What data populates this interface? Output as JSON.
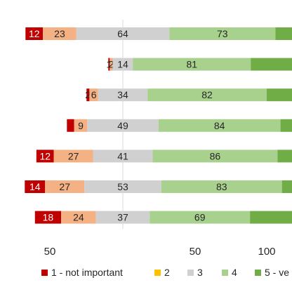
{
  "chart_data": {
    "type": "bar",
    "orientation": "horizontal",
    "stacked": true,
    "categories": [
      "",
      "",
      "",
      "",
      "",
      "",
      ""
    ],
    "series": [
      {
        "name": "1 - not important",
        "color": "#c00000",
        "values": [
          12,
          1,
          2,
          5,
          12,
          14,
          18
        ],
        "labels": [
          "12",
          "1",
          "2",
          "",
          "12",
          "14",
          "18"
        ]
      },
      {
        "name": "2",
        "color": "#f4b183",
        "values": [
          23,
          2,
          6,
          9,
          27,
          27,
          24
        ],
        "labels": [
          "23",
          "2",
          "6",
          "9",
          "27",
          "27",
          "24"
        ]
      },
      {
        "name": "3",
        "color": "#d0d0d0",
        "values": [
          64,
          14,
          34,
          49,
          41,
          53,
          37
        ],
        "labels": [
          "64",
          "14",
          "34",
          "49",
          "41",
          "53",
          "37"
        ]
      },
      {
        "name": "4",
        "color": "#a9d18e",
        "values": [
          73,
          81,
          82,
          84,
          86,
          83,
          69
        ],
        "labels": [
          "73",
          "81",
          "82",
          "84",
          "86",
          "83",
          "69"
        ]
      },
      {
        "name": "5 - ve",
        "color": "#70ad47",
        "values": [
          60,
          100,
          100,
          100,
          100,
          100,
          100
        ],
        "labels": [
          "",
          "",
          "",
          "",
          "",
          "",
          ""
        ]
      }
    ],
    "x_ticks": [
      {
        "value": -100,
        "label": "50"
      },
      {
        "value": 0,
        "label": "50"
      },
      {
        "value": 50,
        "label": "100"
      }
    ],
    "legend_position": "bottom",
    "grid": false
  },
  "colors": {
    "axis": "#d9d9d9",
    "text": "#262626",
    "label_on_dark": "#ffffff"
  }
}
